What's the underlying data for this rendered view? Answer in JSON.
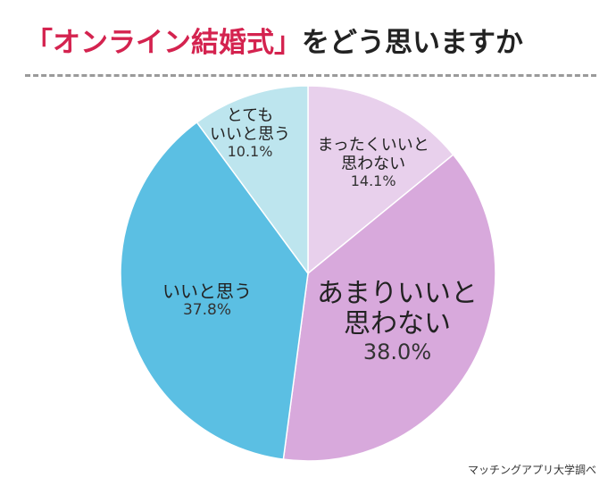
{
  "title": {
    "highlight": "「オンライン結婚式」",
    "rest": "をどう思いますか"
  },
  "source": "マッチングアプリ大学調べ",
  "chart_data": {
    "type": "pie",
    "start": "12 o'clock",
    "direction": "clockwise",
    "slices": [
      {
        "label_lines": [
          "まったくいいと",
          "思わない"
        ],
        "value": 14.1,
        "display": "14.1%",
        "color": "#e8d0ec"
      },
      {
        "label_lines": [
          "あまりいいと",
          "思わない"
        ],
        "value": 38.0,
        "display": "38.0%",
        "color": "#d8a9dc"
      },
      {
        "label_lines": [
          "いいと思う"
        ],
        "value": 37.8,
        "display": "37.8%",
        "color": "#5bbfe3"
      },
      {
        "label_lines": [
          "とても",
          "いいと思う"
        ],
        "value": 10.1,
        "display": "10.1%",
        "color": "#bde5ee"
      }
    ]
  }
}
